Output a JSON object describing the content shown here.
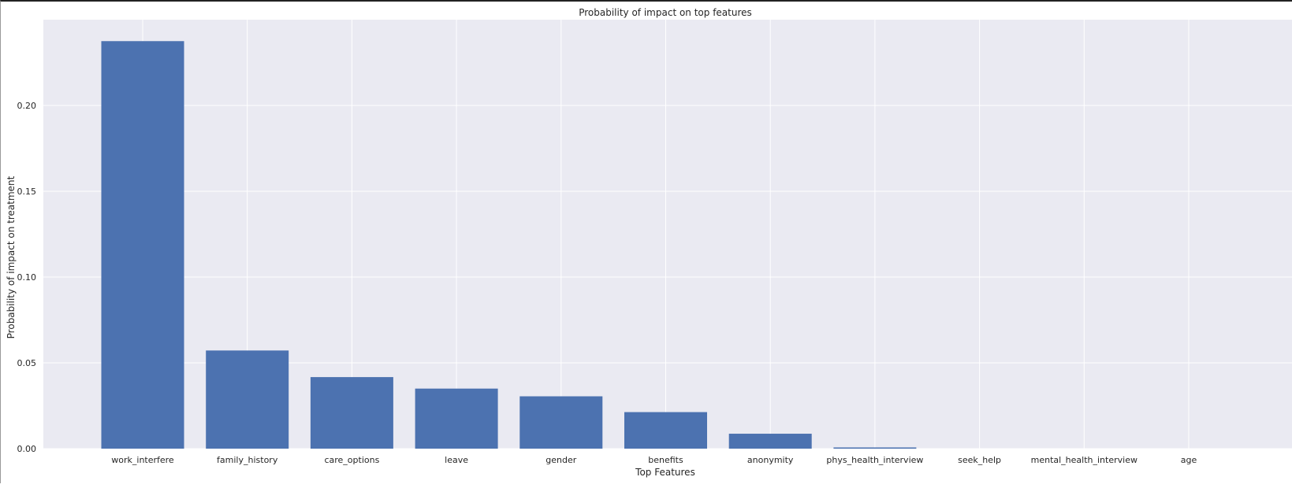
{
  "chart_data": {
    "type": "bar",
    "title": "Probability of impact on top features",
    "xlabel": "Top Features",
    "ylabel": "Probability of impact on treatment",
    "categories": [
      "work_interfere",
      "family_history",
      "care_options",
      "leave",
      "gender",
      "benefits",
      "anonymity",
      "phys_health_interview",
      "seek_help",
      "mental_health_interview",
      "age"
    ],
    "values": [
      0.2375,
      0.0572,
      0.0417,
      0.035,
      0.0305,
      0.0213,
      0.0087,
      0.0007,
      0.0,
      0.0,
      0.0
    ],
    "ylim": [
      0,
      0.25
    ],
    "yticks": [
      0.0,
      0.05,
      0.1,
      0.15,
      0.2
    ],
    "ytick_labels": [
      "0.00",
      "0.05",
      "0.10",
      "0.15",
      "0.20"
    ],
    "grid": true,
    "colors": {
      "bar": "#4c72b0",
      "plot_bg": "#eaeaf2",
      "grid": "#ffffff"
    }
  }
}
